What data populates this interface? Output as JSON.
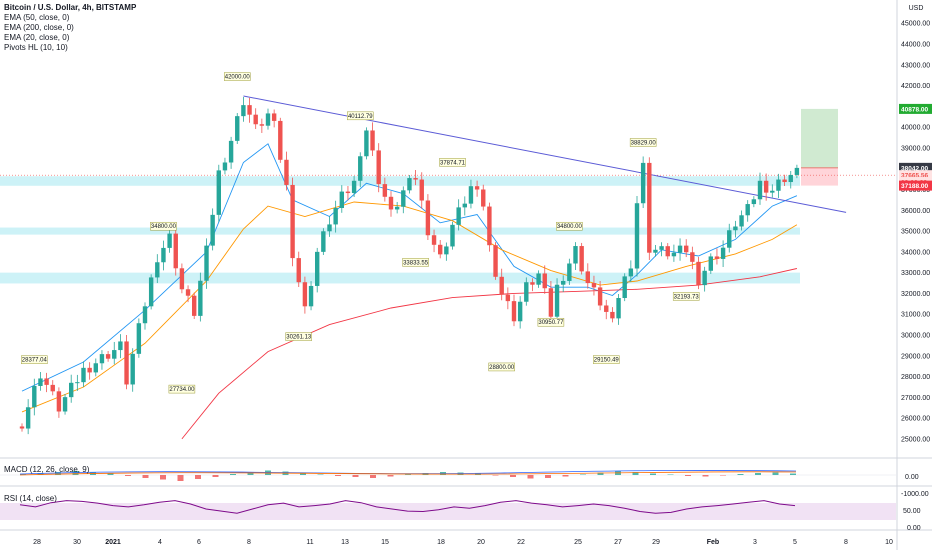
{
  "legend": {
    "symbol": "Bitcoin / U.S. Dollar, 4h, BITSTAMP",
    "ema50": "EMA (50, close, 0)",
    "ema200": "EMA (200, close, 0)",
    "ema20": "EMA (20, close, 0)",
    "pivots": "Pivots HL (10, 10)"
  },
  "price_axis": {
    "currency": "USD",
    "ticks": [
      "45000.00",
      "44000.00",
      "43000.00",
      "42000.00",
      "41000.00",
      "40000.00",
      "39000.00",
      "38000.00",
      "37000.00",
      "36000.00",
      "35000.00",
      "34000.00",
      "33000.00",
      "32000.00",
      "31000.00",
      "30000.00",
      "29000.00",
      "28000.00",
      "27000.00",
      "26000.00",
      "25000.00"
    ],
    "badges": [
      {
        "text": "40878.00",
        "price": 40878,
        "bg": "#22ab31",
        "fg": "#ffffff"
      },
      {
        "text": "38042.00",
        "price": 38042,
        "bg": "#363a45",
        "fg": "#ffffff"
      },
      {
        "text": "37665.56",
        "price": 37690,
        "bg": "#ffe3e3",
        "fg": "#ef5350"
      },
      {
        "text": "03:06:38",
        "price": 37360,
        "bg": "#ffe3e3",
        "fg": "#ef5350"
      },
      {
        "text": "37188.00",
        "price": 37188,
        "bg": "#f23645",
        "fg": "#ffffff"
      }
    ]
  },
  "time_axis": {
    "labels": [
      "28",
      "30",
      "2021",
      "4",
      "6",
      "8",
      "11",
      "13",
      "15",
      "18",
      "20",
      "22",
      "25",
      "27",
      "29",
      "Feb",
      "3",
      "5",
      "8",
      "10"
    ]
  },
  "macd": {
    "label": "MACD (12, 26, close, 9)",
    "ticks": [
      "0.00",
      "-1000.00"
    ]
  },
  "rsi": {
    "label": "RSI (14, close)",
    "ticks": [
      "50.00",
      "0.00"
    ]
  },
  "chart_data": {
    "type": "candlestick",
    "symbol": "Bitcoin / U.S. Dollar",
    "interval": "4h",
    "exchange": "BITSTAMP",
    "ylim": [
      24900,
      45300
    ],
    "x_range": [
      "Dec 27 2020",
      "Feb 10 2021"
    ],
    "close_path": [
      [
        0,
        25800
      ],
      [
        3,
        28150
      ],
      [
        6,
        26500
      ],
      [
        10,
        28300
      ],
      [
        14,
        29100
      ],
      [
        16,
        29450
      ],
      [
        17,
        27800
      ],
      [
        20,
        31500
      ],
      [
        22,
        33800
      ],
      [
        24,
        34700
      ],
      [
        26,
        32200
      ],
      [
        28,
        31100
      ],
      [
        30,
        34000
      ],
      [
        32,
        37800
      ],
      [
        34,
        39400
      ],
      [
        36,
        41300
      ],
      [
        38,
        39900
      ],
      [
        40,
        40600
      ],
      [
        41,
        40000
      ],
      [
        43,
        37100
      ],
      [
        44,
        34000
      ],
      [
        46,
        31200
      ],
      [
        48,
        34000
      ],
      [
        50,
        35500
      ],
      [
        52,
        36600
      ],
      [
        54,
        37300
      ],
      [
        55,
        38900
      ],
      [
        56,
        39900
      ],
      [
        58,
        37500
      ],
      [
        60,
        35800
      ],
      [
        62,
        36900
      ],
      [
        64,
        37600
      ],
      [
        66,
        35100
      ],
      [
        68,
        33700
      ],
      [
        70,
        35300
      ],
      [
        72,
        36500
      ],
      [
        73,
        37100
      ],
      [
        75,
        36300
      ],
      [
        76,
        34200
      ],
      [
        78,
        32000
      ],
      [
        80,
        30900
      ],
      [
        82,
        32300
      ],
      [
        84,
        32900
      ],
      [
        86,
        31000
      ],
      [
        87,
        32300
      ],
      [
        89,
        33500
      ],
      [
        90,
        34100
      ],
      [
        92,
        32500
      ],
      [
        94,
        31600
      ],
      [
        96,
        30500
      ],
      [
        97,
        31900
      ],
      [
        99,
        33500
      ],
      [
        100,
        36400
      ],
      [
        101,
        38100
      ],
      [
        102,
        34200
      ],
      [
        103,
        34100
      ],
      [
        106,
        33900
      ],
      [
        108,
        34100
      ],
      [
        110,
        32700
      ],
      [
        112,
        33600
      ],
      [
        114,
        34200
      ],
      [
        116,
        35400
      ],
      [
        118,
        36000
      ],
      [
        120,
        37300
      ],
      [
        122,
        37000
      ],
      [
        124,
        37600
      ],
      [
        126,
        37800
      ]
    ],
    "series": [
      {
        "name": "EMA (20, close, 0)",
        "color": "#2196f3",
        "values": [
          [
            0,
            27300
          ],
          [
            10,
            28700
          ],
          [
            20,
            31200
          ],
          [
            30,
            34000
          ],
          [
            36,
            38300
          ],
          [
            40,
            39200
          ],
          [
            44,
            36500
          ],
          [
            50,
            35700
          ],
          [
            56,
            37300
          ],
          [
            62,
            36800
          ],
          [
            68,
            35400
          ],
          [
            74,
            35800
          ],
          [
            80,
            33300
          ],
          [
            86,
            32300
          ],
          [
            92,
            32300
          ],
          [
            96,
            31900
          ],
          [
            100,
            32900
          ],
          [
            104,
            34100
          ],
          [
            110,
            33800
          ],
          [
            116,
            34600
          ],
          [
            122,
            36200
          ],
          [
            126,
            36700
          ]
        ]
      },
      {
        "name": "EMA (50, close, 0)",
        "color": "#ff9800",
        "values": [
          [
            0,
            26300
          ],
          [
            10,
            27500
          ],
          [
            20,
            29600
          ],
          [
            30,
            32600
          ],
          [
            36,
            35100
          ],
          [
            40,
            36200
          ],
          [
            46,
            35700
          ],
          [
            54,
            36400
          ],
          [
            62,
            36200
          ],
          [
            70,
            35500
          ],
          [
            78,
            34100
          ],
          [
            86,
            33100
          ],
          [
            94,
            32400
          ],
          [
            100,
            32600
          ],
          [
            108,
            33300
          ],
          [
            116,
            33900
          ],
          [
            122,
            34600
          ],
          [
            126,
            35300
          ]
        ]
      },
      {
        "name": "EMA (200, close, 0)",
        "color": "#f23645",
        "values": [
          [
            26,
            25000
          ],
          [
            32,
            27200
          ],
          [
            40,
            29200
          ],
          [
            50,
            30500
          ],
          [
            60,
            31300
          ],
          [
            70,
            31800
          ],
          [
            80,
            32000
          ],
          [
            90,
            32100
          ],
          [
            100,
            32200
          ],
          [
            110,
            32400
          ],
          [
            120,
            32800
          ],
          [
            126,
            33200
          ]
        ]
      }
    ],
    "pivot_labels": [
      {
        "text": "42000.00",
        "bar": 35,
        "price": 42000,
        "type": "high"
      },
      {
        "text": "40112.79",
        "bar": 55,
        "price": 40112.79,
        "type": "high"
      },
      {
        "text": "37874.71",
        "bar": 70,
        "price": 37874.71,
        "type": "high"
      },
      {
        "text": "34800.00",
        "bar": 23,
        "price": 34800,
        "type": "high"
      },
      {
        "text": "34800.00",
        "bar": 89,
        "price": 34800,
        "type": "high"
      },
      {
        "text": "38829.00",
        "bar": 101,
        "price": 38829,
        "type": "high"
      },
      {
        "text": "28377.04",
        "bar": 2,
        "price": 28377.04,
        "type": "high"
      },
      {
        "text": "33833.55",
        "bar": 64,
        "price": 33833.55,
        "type": "low"
      },
      {
        "text": "30261.13",
        "bar": 45,
        "price": 30261.13,
        "type": "low"
      },
      {
        "text": "27734.00",
        "bar": 26,
        "price": 27734,
        "type": "low"
      },
      {
        "text": "28800.00",
        "bar": 78,
        "price": 28800,
        "type": "low"
      },
      {
        "text": "30950.77",
        "bar": 86,
        "price": 30950.77,
        "type": "low"
      },
      {
        "text": "29150.49",
        "bar": 95,
        "price": 29150.49,
        "type": "low"
      },
      {
        "text": "32193.73",
        "bar": 108,
        "price": 32193.73,
        "type": "low"
      }
    ],
    "zones": [
      {
        "from": 37180,
        "to": 37640
      },
      {
        "from": 34830,
        "to": 35170
      },
      {
        "from": 32480,
        "to": 33000
      }
    ],
    "trendline": {
      "from": [
        36,
        41500
      ],
      "to": [
        134,
        35900
      ]
    },
    "position": {
      "entry": 38042,
      "target": 40878,
      "stop": 37188
    },
    "rsi_path": [
      60,
      55,
      65,
      70,
      68,
      64,
      58,
      55,
      60,
      66,
      70,
      62,
      50,
      45,
      40,
      50,
      60,
      64,
      55,
      58,
      62,
      70,
      65,
      55,
      50,
      45,
      44,
      48,
      55,
      52,
      58,
      66,
      70,
      64,
      60,
      55,
      58,
      62,
      58,
      52,
      44,
      40,
      42,
      50,
      55,
      58,
      62,
      66,
      70,
      62,
      58
    ],
    "macd_hist": [
      20,
      40,
      60,
      80,
      60,
      30,
      -20,
      -60,
      -90,
      -120,
      -80,
      -40,
      20,
      60,
      90,
      70,
      40,
      10,
      -20,
      -40,
      -60,
      -30,
      10,
      40,
      60,
      50,
      30,
      -10,
      -40,
      -70,
      -60,
      -30,
      10,
      50,
      80,
      60,
      30,
      10,
      -20,
      -30,
      -10,
      20,
      40,
      50,
      30
    ]
  }
}
